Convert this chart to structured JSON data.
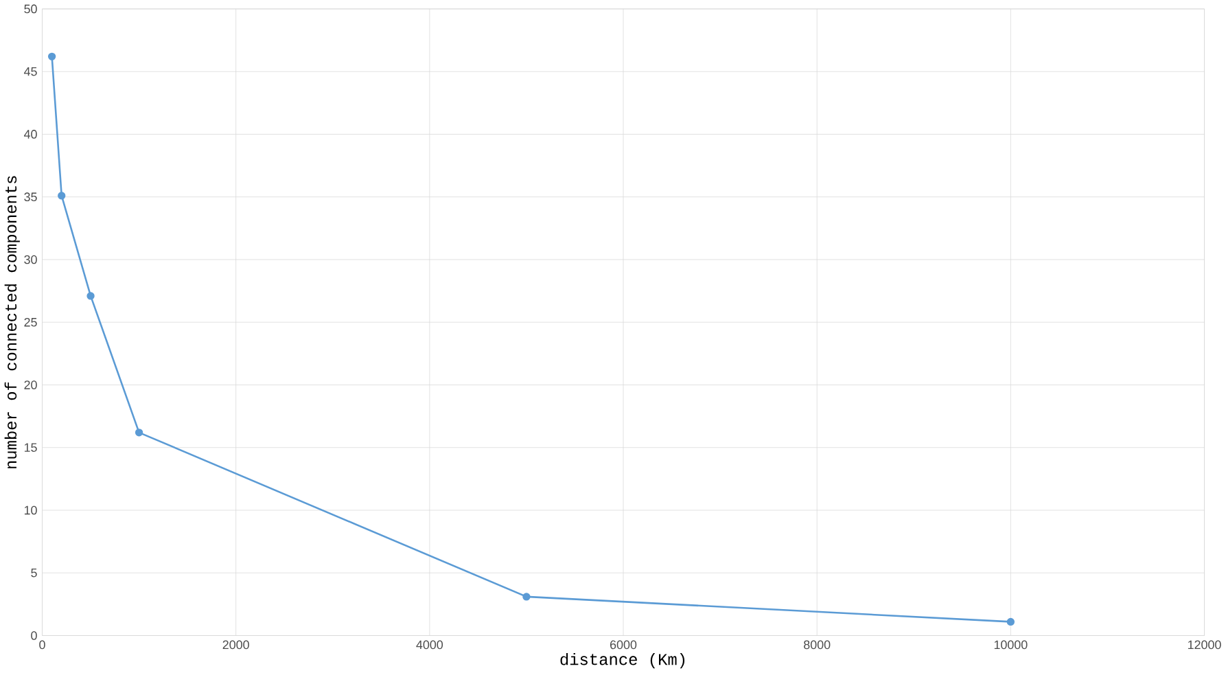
{
  "chart_data": {
    "type": "line",
    "xlabel": "distance (Km)",
    "ylabel": "number of connected components",
    "x": [
      100,
      200,
      500,
      1000,
      5000,
      10000
    ],
    "series": [
      {
        "color": "#5b9bd5",
        "values": [
          46.2,
          35.1,
          27.1,
          16.2,
          3.1,
          1.1
        ]
      }
    ],
    "xlim": [
      0,
      12000
    ],
    "xticks": [
      0,
      2000,
      4000,
      6000,
      8000,
      10000,
      12000
    ],
    "ylim": [
      0,
      50
    ],
    "yticks": [
      0,
      5,
      10,
      15,
      20,
      25,
      30,
      35,
      40,
      45,
      50
    ],
    "grid": true,
    "marker": "circle",
    "line_style": "solid"
  }
}
